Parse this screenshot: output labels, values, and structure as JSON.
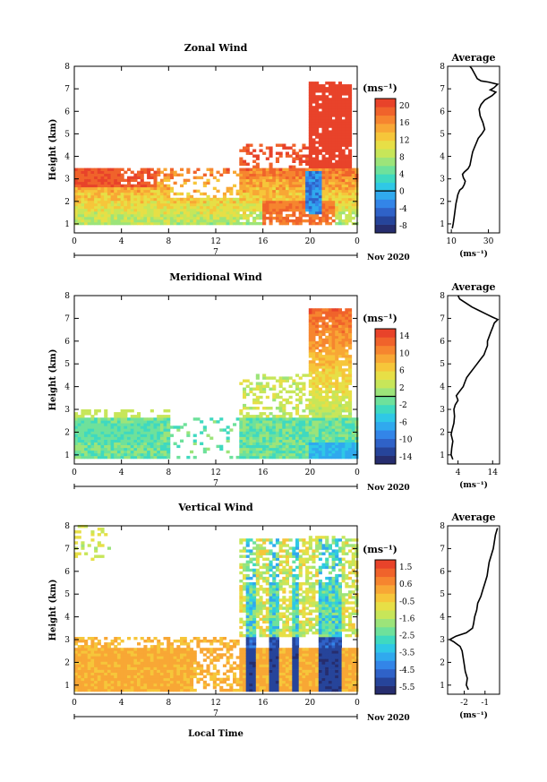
{
  "figure": {
    "date_label": "Nov 2020",
    "day_label": "7",
    "x_axis_label": "Local Time",
    "unit_label": "(ms⁻¹)",
    "avg_unit_label": "(ms⁻¹)"
  },
  "chart_data": [
    {
      "type": "heatmap",
      "title": "Zonal Wind",
      "xlabel": "",
      "ylabel": "Height (km)",
      "x_ticks": [
        "0",
        "4",
        "8",
        "12",
        "16",
        "20",
        "0"
      ],
      "x_range": [
        0,
        24
      ],
      "y_ticks": [
        "1",
        "2",
        "3",
        "4",
        "5",
        "6",
        "7",
        "8"
      ],
      "y_range": [
        0.6,
        8
      ],
      "colorbar": {
        "unit": "(ms⁻¹)",
        "ticks": [
          "20",
          "16",
          "12",
          "8",
          "4",
          "0",
          "-4",
          "-8"
        ],
        "range": [
          -10,
          22
        ]
      },
      "average_profile": {
        "title": "Average",
        "x_ticks": [
          "10",
          "30"
        ],
        "x_range": [
          8,
          36
        ],
        "unit": "(ms⁻¹)",
        "points": [
          [
            10.5,
            0.8
          ],
          [
            11,
            1.0
          ],
          [
            11.5,
            1.3
          ],
          [
            12,
            1.6
          ],
          [
            12.5,
            1.9
          ],
          [
            13,
            2.1
          ],
          [
            13.5,
            2.3
          ],
          [
            14.5,
            2.5
          ],
          [
            16,
            2.6
          ],
          [
            17,
            2.75
          ],
          [
            17.5,
            2.9
          ],
          [
            16.5,
            3.05
          ],
          [
            16,
            3.2
          ],
          [
            17,
            3.3
          ],
          [
            19,
            3.45
          ],
          [
            20,
            3.6
          ],
          [
            20.5,
            3.8
          ],
          [
            21,
            4.0
          ],
          [
            21.5,
            4.2
          ],
          [
            22.5,
            4.4
          ],
          [
            23.5,
            4.6
          ],
          [
            24.5,
            4.8
          ],
          [
            26.5,
            5.0
          ],
          [
            28,
            5.2
          ],
          [
            27,
            5.5
          ],
          [
            25.5,
            5.8
          ],
          [
            25,
            6.1
          ],
          [
            26,
            6.3
          ],
          [
            28,
            6.5
          ],
          [
            30,
            6.6
          ],
          [
            32,
            6.7
          ],
          [
            34,
            6.85
          ],
          [
            31,
            6.95
          ],
          [
            33,
            7.05
          ],
          [
            35,
            7.2
          ],
          [
            30,
            7.3
          ],
          [
            26,
            7.35
          ],
          [
            24,
            7.45
          ],
          [
            23,
            7.6
          ],
          [
            22,
            7.75
          ],
          [
            21,
            7.9
          ],
          [
            20,
            8.0
          ]
        ]
      }
    },
    {
      "type": "heatmap",
      "title": "Meridional Wind",
      "xlabel": "",
      "ylabel": "Height (km)",
      "x_ticks": [
        "0",
        "4",
        "8",
        "12",
        "16",
        "20",
        "0"
      ],
      "x_range": [
        0,
        24
      ],
      "y_ticks": [
        "1",
        "2",
        "3",
        "4",
        "5",
        "6",
        "7",
        "8"
      ],
      "y_range": [
        0.6,
        8
      ],
      "colorbar": {
        "unit": "(ms⁻¹)",
        "ticks": [
          "14",
          "10",
          "6",
          "2",
          "-2",
          "-6",
          "-10",
          "-14"
        ],
        "range": [
          -16,
          16
        ]
      },
      "average_profile": {
        "title": "Average",
        "x_ticks": [
          "4",
          "14"
        ],
        "x_range": [
          1,
          16
        ],
        "unit": "(ms⁻¹)",
        "points": [
          [
            2.5,
            0.8
          ],
          [
            2,
            1.0
          ],
          [
            2.2,
            1.3
          ],
          [
            2.5,
            1.6
          ],
          [
            2,
            1.9
          ],
          [
            2.3,
            2.1
          ],
          [
            2.8,
            2.4
          ],
          [
            3,
            2.7
          ],
          [
            2.8,
            3.0
          ],
          [
            3.2,
            3.2
          ],
          [
            4,
            3.4
          ],
          [
            3.5,
            3.6
          ],
          [
            4.5,
            3.8
          ],
          [
            5.5,
            4.0
          ],
          [
            6,
            4.2
          ],
          [
            6.5,
            4.4
          ],
          [
            7.5,
            4.6
          ],
          [
            8.5,
            4.8
          ],
          [
            9.5,
            5.0
          ],
          [
            10.5,
            5.2
          ],
          [
            11.5,
            5.4
          ],
          [
            12,
            5.6
          ],
          [
            12.5,
            5.8
          ],
          [
            12.5,
            6.0
          ],
          [
            13,
            6.2
          ],
          [
            13.5,
            6.4
          ],
          [
            14,
            6.6
          ],
          [
            14.5,
            6.8
          ],
          [
            15.5,
            6.95
          ],
          [
            14,
            7.05
          ],
          [
            12,
            7.2
          ],
          [
            10,
            7.35
          ],
          [
            8,
            7.5
          ],
          [
            6,
            7.7
          ],
          [
            4.5,
            7.85
          ],
          [
            4,
            8.0
          ]
        ]
      }
    },
    {
      "type": "heatmap",
      "title": "Vertical Wind",
      "xlabel": "Local Time",
      "ylabel": "Height (km)",
      "x_ticks": [
        "0",
        "4",
        "8",
        "12",
        "16",
        "20",
        "0"
      ],
      "x_range": [
        0,
        24
      ],
      "y_ticks": [
        "1",
        "2",
        "3",
        "4",
        "5",
        "6",
        "7",
        "8"
      ],
      "y_range": [
        0.6,
        8
      ],
      "colorbar": {
        "unit": "(ms⁻¹)",
        "ticks": [
          "1.5",
          "0.6",
          "-0.5",
          "-1.6",
          "-2.5",
          "-3.5",
          "-4.5",
          "-5.5"
        ],
        "range": [
          -6,
          2
        ]
      },
      "average_profile": {
        "title": "Average",
        "x_ticks": [
          "-2",
          "-1"
        ],
        "x_range": [
          -2.8,
          -0.3
        ],
        "unit": "(ms⁻¹)",
        "points": [
          [
            -1.8,
            0.8
          ],
          [
            -1.9,
            1.0
          ],
          [
            -1.85,
            1.3
          ],
          [
            -1.95,
            1.6
          ],
          [
            -2.0,
            1.9
          ],
          [
            -2.05,
            2.2
          ],
          [
            -2.1,
            2.5
          ],
          [
            -2.2,
            2.7
          ],
          [
            -2.5,
            2.9
          ],
          [
            -2.7,
            3.0
          ],
          [
            -2.4,
            3.15
          ],
          [
            -1.9,
            3.3
          ],
          [
            -1.6,
            3.5
          ],
          [
            -1.55,
            3.7
          ],
          [
            -1.5,
            4.0
          ],
          [
            -1.4,
            4.3
          ],
          [
            -1.35,
            4.6
          ],
          [
            -1.2,
            4.9
          ],
          [
            -1.1,
            5.2
          ],
          [
            -1.0,
            5.5
          ],
          [
            -0.9,
            5.8
          ],
          [
            -0.85,
            6.1
          ],
          [
            -0.8,
            6.4
          ],
          [
            -0.7,
            6.7
          ],
          [
            -0.6,
            7.0
          ],
          [
            -0.55,
            7.3
          ],
          [
            -0.5,
            7.6
          ],
          [
            -0.4,
            7.9
          ]
        ]
      }
    }
  ]
}
